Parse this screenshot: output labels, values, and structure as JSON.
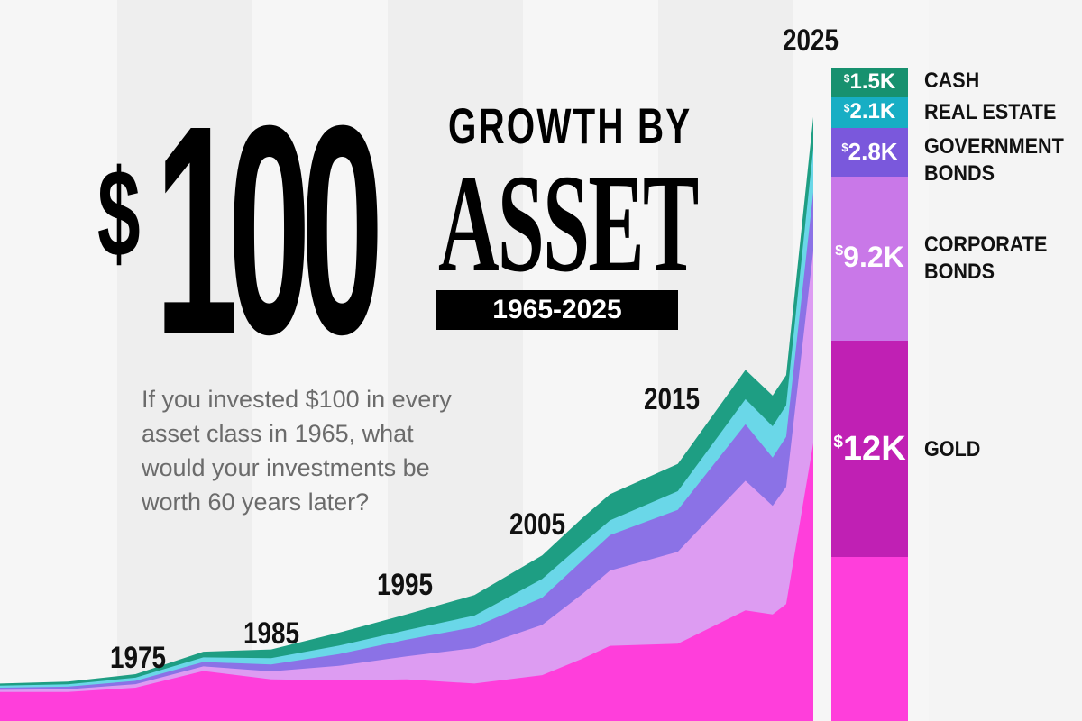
{
  "title": {
    "amount": "100",
    "currency": "$",
    "line1": "GROWTH BY",
    "line2": "ASSET",
    "range": "1965-2025"
  },
  "question": "If you invested $100 in every asset class in 1965, what would your investments be worth 60 years later?",
  "colors": {
    "gold": "#ff3edb",
    "corporate_bonds": "#dd9cf2",
    "government_bonds": "#8b72e6",
    "real_estate": "#6ad7e8",
    "cash": "#1e9e83"
  },
  "legend": [
    {
      "currency": "$",
      "value": "1.5K",
      "label": "CASH",
      "color": "#17916f"
    },
    {
      "currency": "$",
      "value": "2.1K",
      "label": "REAL ESTATE",
      "color": "#17aec4"
    },
    {
      "currency": "$",
      "value": "2.8K",
      "label": "GOVERNMENT\nBONDS",
      "color": "#7a58dc"
    },
    {
      "currency": "$",
      "value": "9.2K",
      "label": "CORPORATE\nBONDS",
      "color": "#c978e8"
    },
    {
      "currency": "$",
      "value": "12K",
      "label": "GOLD",
      "color": "#c020b4"
    }
  ],
  "chart_data": {
    "type": "area",
    "stacked": true,
    "year_labels": [
      "1975",
      "1985",
      "1995",
      "2005",
      "2015",
      "2025"
    ],
    "x": [
      1965,
      1970,
      1975,
      1980,
      1985,
      1990,
      1995,
      2000,
      2005,
      2008,
      2010,
      2015,
      2020,
      2022,
      2023,
      2025
    ],
    "series": [
      {
        "name": "GOLD",
        "values": [
          100,
          100,
          300,
          1100,
          700,
          650,
          700,
          500,
          900,
          1700,
          2300,
          2400,
          4000,
          3800,
          4300,
          12000
        ]
      },
      {
        "name": "CORPORATE BONDS",
        "values": [
          100,
          125,
          170,
          220,
          380,
          700,
          1100,
          1700,
          2400,
          3100,
          3600,
          4400,
          6200,
          5200,
          5600,
          9200
        ]
      },
      {
        "name": "GOVERNMENT BONDS",
        "values": [
          100,
          125,
          160,
          210,
          330,
          560,
          800,
          1000,
          1300,
          1600,
          1700,
          2000,
          2700,
          2300,
          2400,
          2800
        ]
      },
      {
        "name": "REAL ESTATE",
        "values": [
          100,
          115,
          150,
          220,
          300,
          400,
          450,
          550,
          900,
          800,
          700,
          900,
          1200,
          1500,
          1500,
          2100
        ]
      },
      {
        "name": "CASH",
        "values": [
          100,
          125,
          170,
          270,
          420,
          620,
          760,
          980,
          1130,
          1240,
          1250,
          1300,
          1400,
          1470,
          1450,
          1500
        ]
      }
    ],
    "xlim": [
      1965,
      2025
    ],
    "legend_position": "right"
  }
}
